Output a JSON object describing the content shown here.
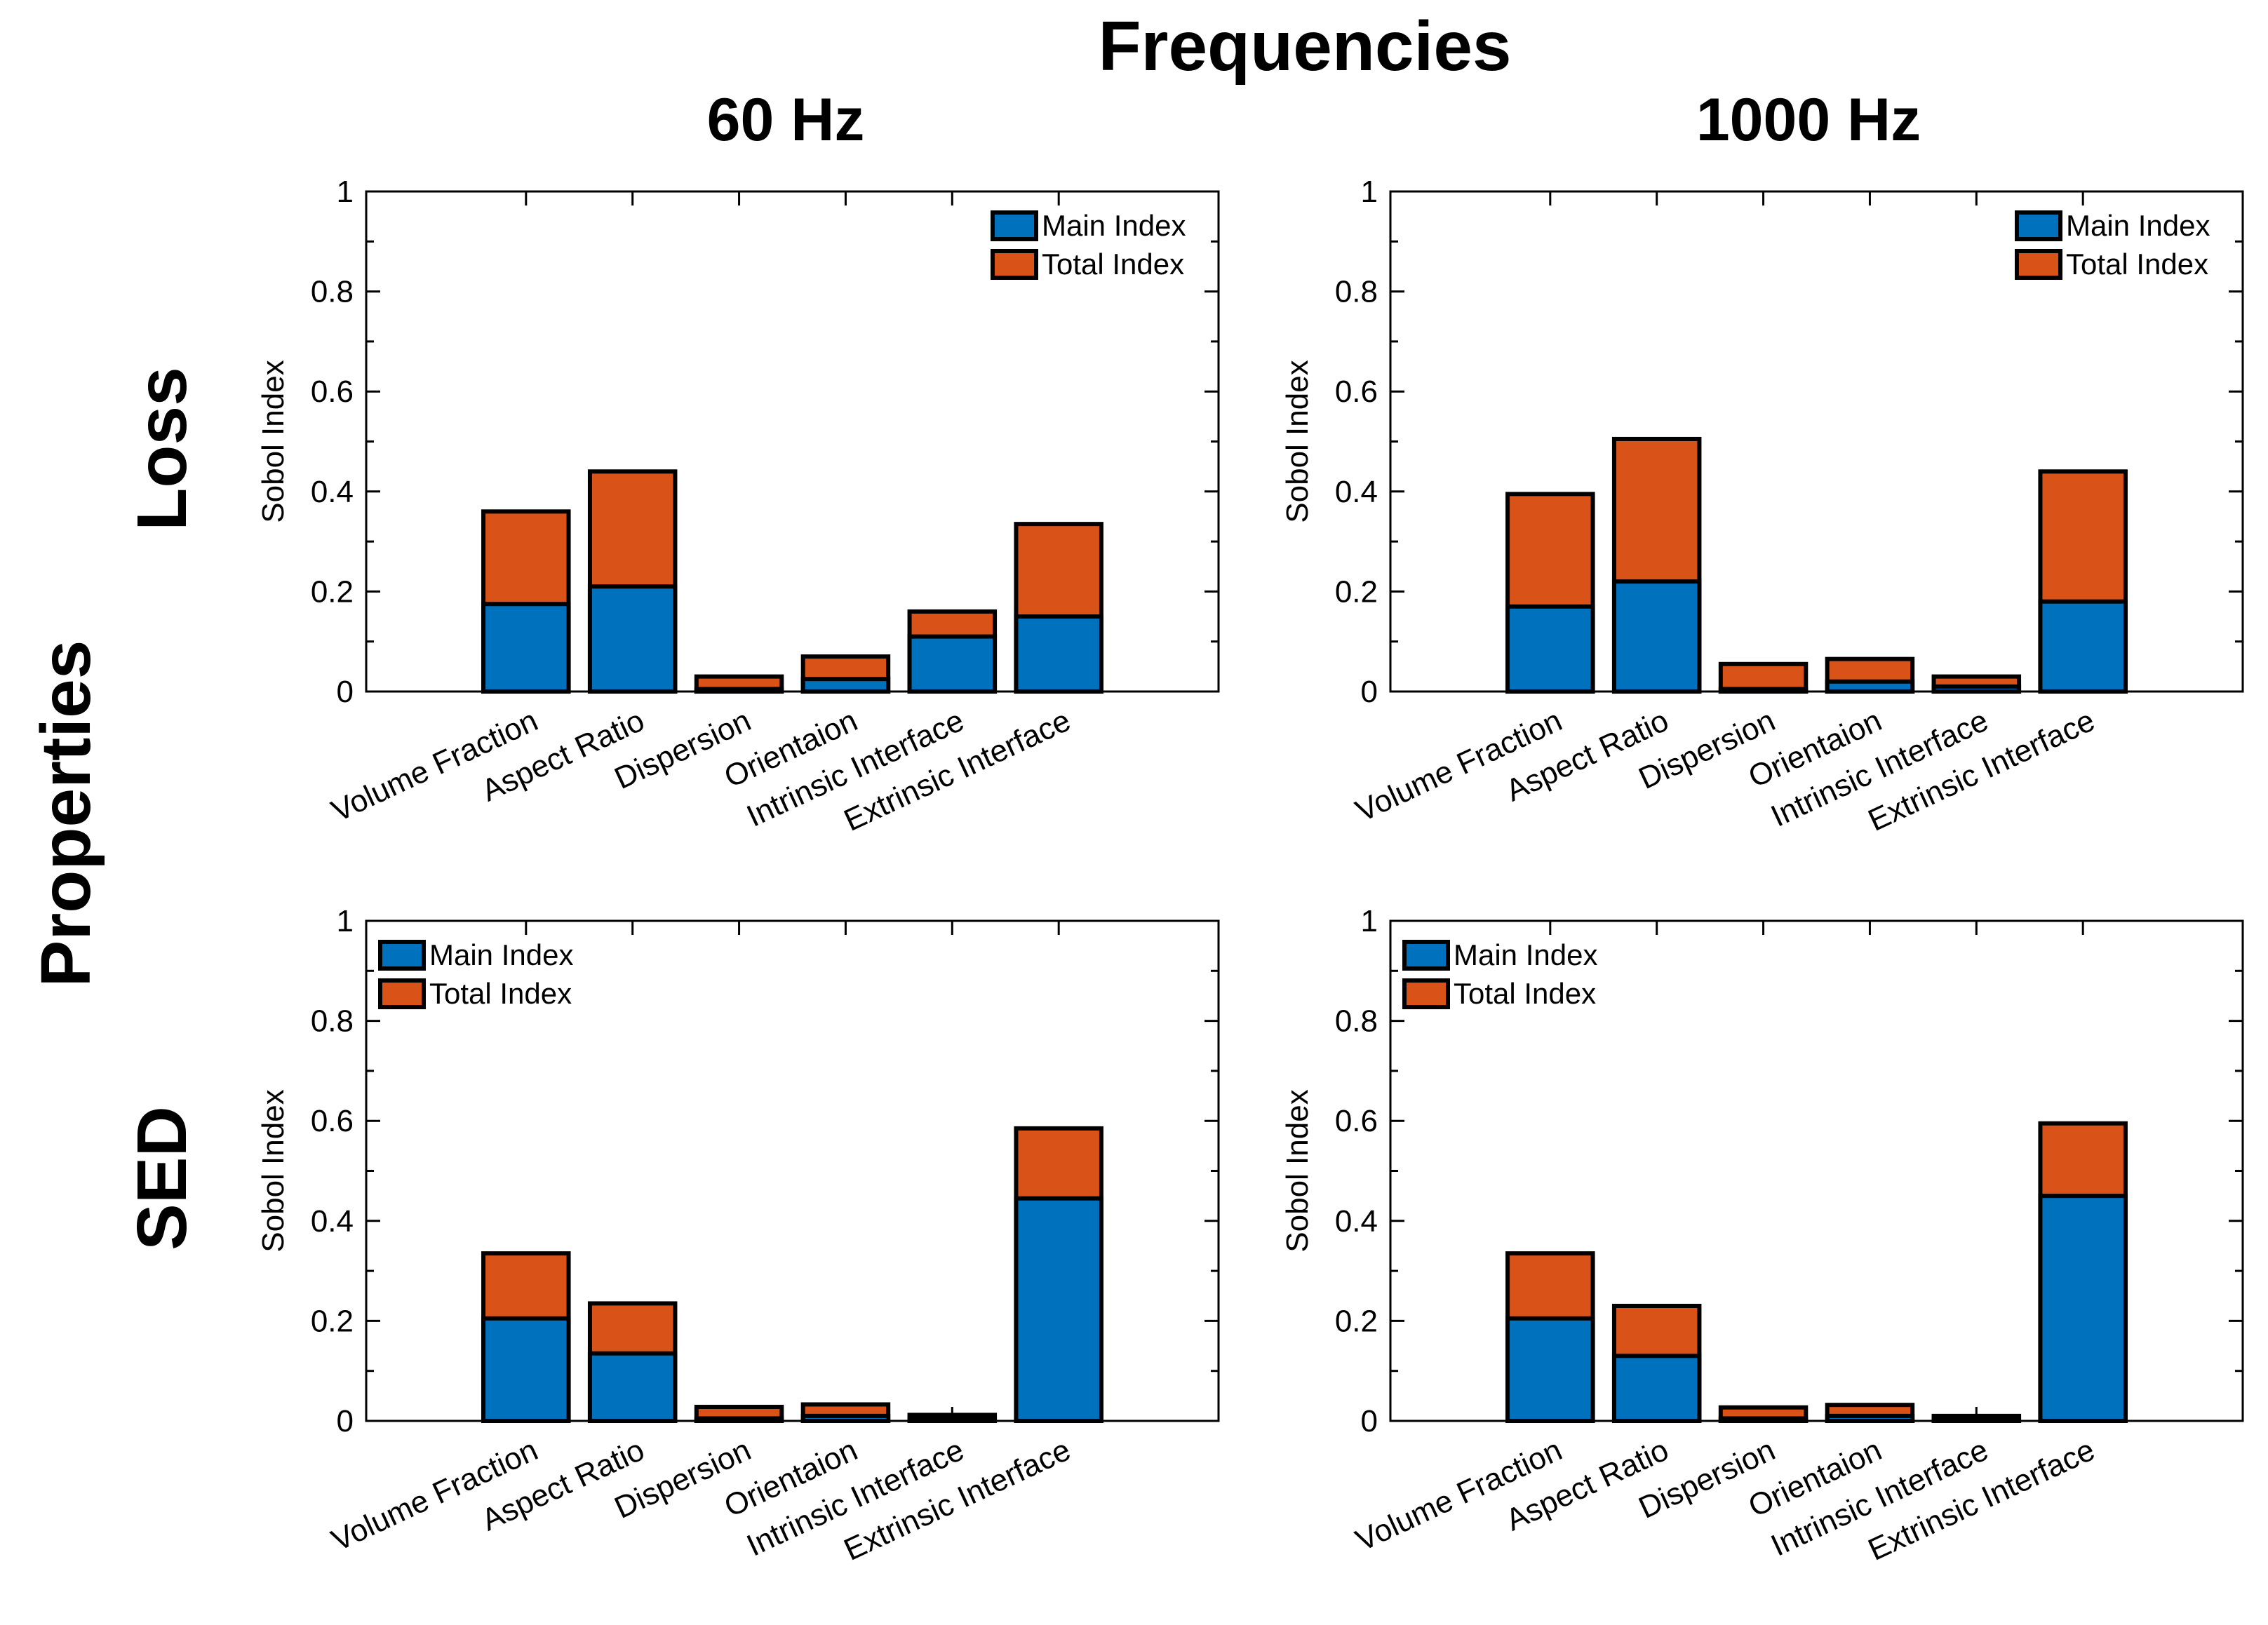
{
  "figure": {
    "title": "Frequencies",
    "row_group_label": "Properties",
    "column_labels": [
      "60 Hz",
      "1000 Hz"
    ],
    "row_labels": [
      "Loss",
      "SED"
    ]
  },
  "colors": {
    "main": "#0072BD",
    "total": "#D95319",
    "edge": "#000000"
  },
  "chart_data": [
    {
      "type": "bar",
      "stacking": "overlaid",
      "panel": "Loss / 60 Hz",
      "title": "",
      "xlabel": "",
      "ylabel": "Sobol Index",
      "ylim": [
        0,
        1
      ],
      "yticks": [
        "0",
        "0.2",
        "0.4",
        "0.6",
        "0.8",
        "1"
      ],
      "categories": [
        "Volume Fraction",
        "Aspect Ratio",
        "Dispersion",
        "Orientaion",
        "Intrinsic Interface",
        "Extrinsic Interface"
      ],
      "series": [
        {
          "name": "Main Index",
          "values": [
            0.175,
            0.21,
            0.005,
            0.025,
            0.11,
            0.15
          ]
        },
        {
          "name": "Total Index",
          "values": [
            0.36,
            0.44,
            0.03,
            0.07,
            0.16,
            0.335
          ]
        }
      ],
      "legend": "top-right"
    },
    {
      "type": "bar",
      "stacking": "overlaid",
      "panel": "Loss / 1000 Hz",
      "title": "",
      "xlabel": "",
      "ylabel": "Sobol Index",
      "ylim": [
        0,
        1
      ],
      "yticks": [
        "0",
        "0.2",
        "0.4",
        "0.6",
        "0.8",
        "1"
      ],
      "categories": [
        "Volume Fraction",
        "Aspect Ratio",
        "Dispersion",
        "Orientaion",
        "Intrinsic Interface",
        "Extrinsic Interface"
      ],
      "series": [
        {
          "name": "Main Index",
          "values": [
            0.17,
            0.22,
            0.005,
            0.02,
            0.01,
            0.18
          ]
        },
        {
          "name": "Total Index",
          "values": [
            0.395,
            0.505,
            0.055,
            0.065,
            0.03,
            0.44
          ]
        }
      ],
      "legend": "top-right"
    },
    {
      "type": "bar",
      "stacking": "overlaid",
      "panel": "SED / 60 Hz",
      "title": "",
      "xlabel": "",
      "ylabel": "Sobol Index",
      "ylim": [
        0,
        1
      ],
      "yticks": [
        "0",
        "0.2",
        "0.4",
        "0.6",
        "0.8",
        "1"
      ],
      "categories": [
        "Volume Fraction",
        "Aspect Ratio",
        "Dispersion",
        "Orientaion",
        "Intrinsic Interface",
        "Extrinsic Interface"
      ],
      "series": [
        {
          "name": "Main Index",
          "values": [
            0.205,
            0.135,
            0.005,
            0.01,
            0.005,
            0.445
          ]
        },
        {
          "name": "Total Index",
          "values": [
            0.335,
            0.235,
            0.028,
            0.033,
            0.012,
            0.585
          ]
        }
      ],
      "legend": "top-left"
    },
    {
      "type": "bar",
      "stacking": "overlaid",
      "panel": "SED / 1000 Hz",
      "title": "",
      "xlabel": "",
      "ylabel": "Sobol Index",
      "ylim": [
        0,
        1
      ],
      "yticks": [
        "0",
        "0.2",
        "0.4",
        "0.6",
        "0.8",
        "1"
      ],
      "categories": [
        "Volume Fraction",
        "Aspect Ratio",
        "Dispersion",
        "Orientaion",
        "Intrinsic Interface",
        "Extrinsic Interface"
      ],
      "series": [
        {
          "name": "Main Index",
          "values": [
            0.205,
            0.13,
            0.005,
            0.01,
            0.005,
            0.45
          ]
        },
        {
          "name": "Total Index",
          "values": [
            0.335,
            0.23,
            0.027,
            0.032,
            0.01,
            0.595
          ]
        }
      ],
      "legend": "top-left"
    }
  ]
}
